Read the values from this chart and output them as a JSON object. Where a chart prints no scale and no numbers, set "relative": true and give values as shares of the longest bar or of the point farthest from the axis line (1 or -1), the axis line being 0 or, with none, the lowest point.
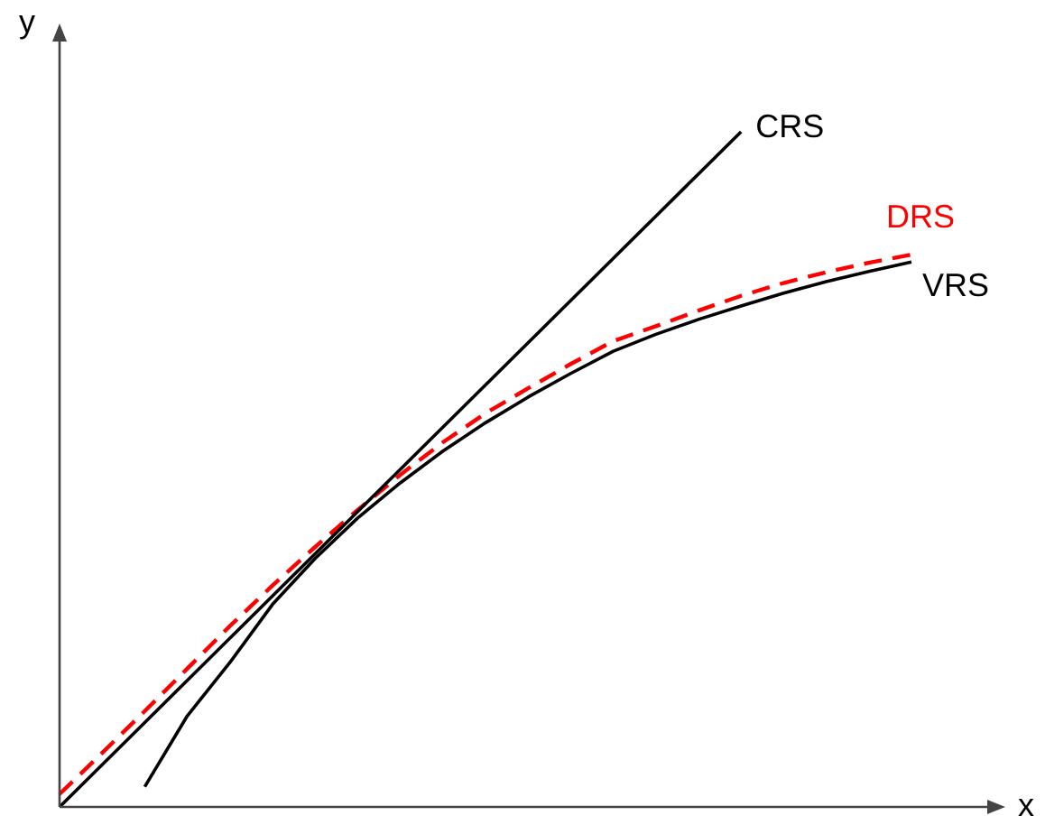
{
  "chart_data": {
    "type": "line",
    "relative": true,
    "xlabel": "x",
    "ylabel": "y",
    "legend": false,
    "marker": "none",
    "categories": [
      null,
      null,
      null,
      null,
      null,
      null,
      null,
      null,
      null,
      null,
      null,
      null,
      null,
      null,
      null,
      null,
      null,
      null,
      null,
      null,
      null
    ],
    "series": [
      {
        "name": "CRS",
        "color": "#000000",
        "line_style": "solid",
        "values": [
          0,
          0.0625,
          0.125,
          0.1875,
          0.25,
          0.3125,
          0.375,
          0.4375,
          0.5,
          0.5625,
          0.625,
          0.6875,
          0.75,
          0.8125,
          0.875,
          0.9375,
          1,
          null,
          null,
          null,
          null
        ]
      },
      {
        "name": "DRS",
        "color": "#ff0000",
        "line_style": "dashed",
        "values": [
          0.019,
          0.08,
          0.142,
          0.205,
          0.268,
          0.328,
          0.385,
          0.44,
          0.492,
          0.54,
          0.583,
          0.62,
          0.656,
          0.69,
          0.712,
          0.735,
          0.757,
          0.776,
          0.792,
          0.806,
          0.818
        ]
      },
      {
        "name": "VRS",
        "color": "#000000",
        "line_style": "solid",
        "values": [
          null,
          null,
          0.03,
          0.135,
          0.214,
          0.3,
          0.368,
          0.428,
          0.48,
          0.527,
          0.569,
          0.607,
          0.642,
          0.675,
          0.7,
          0.722,
          0.742,
          0.761,
          0.778,
          0.793,
          0.807
        ]
      }
    ]
  }
}
